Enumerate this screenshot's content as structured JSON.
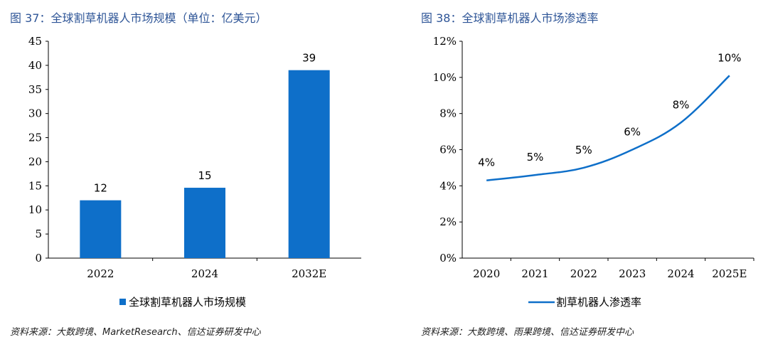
{
  "left": {
    "title": "图 37：全球割草机器人市场规模（单位：亿美元）",
    "source": "资料来源：大数跨境、MarketResearch、信达证券研发中心",
    "chart_data": {
      "type": "bar",
      "categories": [
        "2022",
        "2024",
        "2032E"
      ],
      "series": [
        {
          "name": "全球割草机器人市场规模",
          "values": [
            12,
            14.6,
            39
          ],
          "labels": [
            "12",
            "15",
            "39"
          ]
        }
      ],
      "ylim": [
        0,
        45
      ],
      "yticks": [
        "0",
        "5",
        "10",
        "15",
        "20",
        "25",
        "30",
        "35",
        "40",
        "45"
      ],
      "color": "#0e6fc9",
      "legend": "bottom"
    }
  },
  "right": {
    "title": "图 38：全球割草机器人市场渗透率",
    "source": "资料来源：大数跨境、雨果跨境、信达证券研发中心",
    "chart_data": {
      "type": "line",
      "categories": [
        "2020",
        "2021",
        "2022",
        "2023",
        "2024",
        "2025E"
      ],
      "series": [
        {
          "name": "割草机器人渗透率",
          "values": [
            4.3,
            4.6,
            5.0,
            6.0,
            7.5,
            10.1
          ],
          "labels": [
            "4%",
            "5%",
            "5%",
            "6%",
            "8%",
            "10%"
          ]
        }
      ],
      "ylim": [
        0,
        12
      ],
      "yticks": [
        "0%",
        "2%",
        "4%",
        "6%",
        "8%",
        "10%",
        "12%"
      ],
      "color": "#0e6fc9",
      "legend": "bottom"
    }
  }
}
